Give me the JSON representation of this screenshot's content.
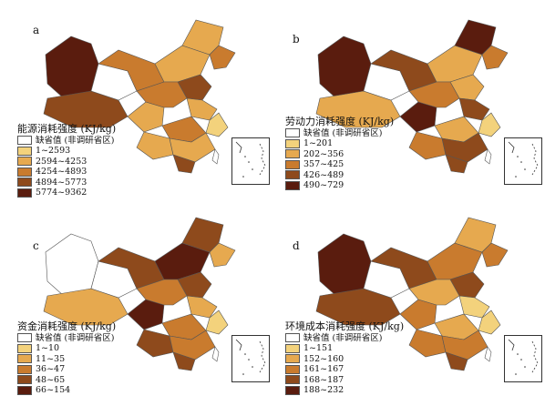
{
  "colors": {
    "missing": "#ffffff",
    "c1": "#f3d27c",
    "c2": "#e6a94f",
    "c3": "#c97b2e",
    "c4": "#8e4a1c",
    "c5": "#5a1c0e",
    "border": "#555555"
  },
  "panels": [
    {
      "label": "a",
      "legend_title": "能源消耗强度 (KJ/kg)",
      "items": [
        {
          "text": "缺省值 (非调研省区)",
          "color": "#ffffff"
        },
        {
          "text": "1~2593",
          "color": "#f3d27c"
        },
        {
          "text": "2594~4253",
          "color": "#e6a94f"
        },
        {
          "text": "4254~4893",
          "color": "#c97b2e"
        },
        {
          "text": "4894~5773",
          "color": "#8e4a1c"
        },
        {
          "text": "5774~9362",
          "color": "#5a1c0e"
        }
      ],
      "region_fills": [
        "#5a1c0e",
        "#8e4a1c",
        "#ffffff",
        "#c97b2e",
        "#e6a94f",
        "#e6a94f",
        "#c97b2e",
        "#8e4a1c",
        "#e6a94f",
        "#c97b2e",
        "#e6a94f",
        "#f3d27c",
        "#c97b2e",
        "#e6a94f",
        "#e6a94f",
        "#8e4a1c",
        "#ffffff"
      ]
    },
    {
      "label": "b",
      "legend_title": "劳动力消耗强度 (KJ/kg)",
      "items": [
        {
          "text": "缺省值 (非调研省区)",
          "color": "#ffffff"
        },
        {
          "text": "1~201",
          "color": "#f3d27c"
        },
        {
          "text": "202~356",
          "color": "#e6a94f"
        },
        {
          "text": "357~425",
          "color": "#c97b2e"
        },
        {
          "text": "426~489",
          "color": "#8e4a1c"
        },
        {
          "text": "490~729",
          "color": "#5a1c0e"
        }
      ],
      "region_fills": [
        "#5a1c0e",
        "#e6a94f",
        "#ffffff",
        "#8e4a1c",
        "#e6a94f",
        "#5a1c0e",
        "#c97b2e",
        "#e6a94f",
        "#5a1c0e",
        "#c97b2e",
        "#8e4a1c",
        "#f3d27c",
        "#e6a94f",
        "#c97b2e",
        "#8e4a1c",
        "#8e4a1c",
        "#ffffff"
      ]
    },
    {
      "label": "c",
      "legend_title": "资金消耗强度 (KJ/kg)",
      "items": [
        {
          "text": "缺省值 (非调研省区)",
          "color": "#ffffff"
        },
        {
          "text": "1~10",
          "color": "#f3d27c"
        },
        {
          "text": "11~35",
          "color": "#e6a94f"
        },
        {
          "text": "36~47",
          "color": "#c97b2e"
        },
        {
          "text": "48~65",
          "color": "#8e4a1c"
        },
        {
          "text": "66~154",
          "color": "#5a1c0e"
        }
      ],
      "region_fills": [
        "#ffffff",
        "#e6a94f",
        "#ffffff",
        "#8e4a1c",
        "#5a1c0e",
        "#8e4a1c",
        "#e6a94f",
        "#8e4a1c",
        "#5a1c0e",
        "#c97b2e",
        "#e6a94f",
        "#f3d27c",
        "#c97b2e",
        "#8e4a1c",
        "#c97b2e",
        "#8e4a1c",
        "#ffffff"
      ]
    },
    {
      "label": "d",
      "legend_title": "环境成本消耗强度 (KJ/kg)",
      "items": [
        {
          "text": "缺省值 (非调研省区)",
          "color": "#ffffff"
        },
        {
          "text": "1~151",
          "color": "#f3d27c"
        },
        {
          "text": "152~160",
          "color": "#e6a94f"
        },
        {
          "text": "161~167",
          "color": "#c97b2e"
        },
        {
          "text": "168~187",
          "color": "#8e4a1c"
        },
        {
          "text": "188~232",
          "color": "#5a1c0e"
        }
      ],
      "region_fills": [
        "#5a1c0e",
        "#8e4a1c",
        "#ffffff",
        "#8e4a1c",
        "#c97b2e",
        "#e6a94f",
        "#c97b2e",
        "#8e4a1c",
        "#c97b2e",
        "#e6a94f",
        "#f3d27c",
        "#f3d27c",
        "#e6a94f",
        "#c97b2e",
        "#c97b2e",
        "#8e4a1c",
        "#ffffff"
      ]
    }
  ]
}
